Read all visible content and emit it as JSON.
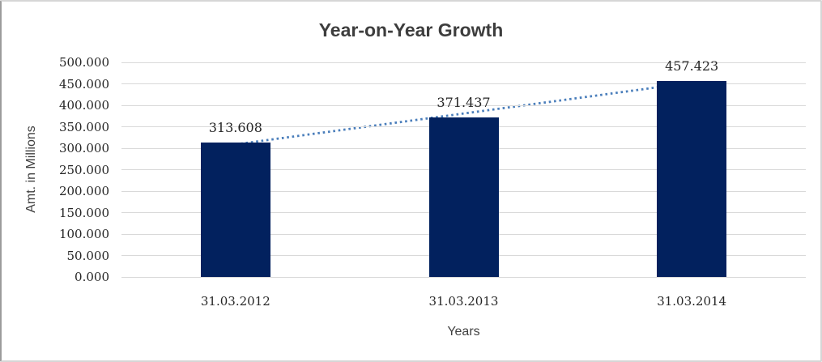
{
  "chart_data": {
    "type": "bar",
    "title": "Year-on-Year Growth",
    "xlabel": "Years",
    "ylabel": "Amt. in Millions",
    "categories": [
      "31.03.2012",
      "31.03.2013",
      "31.03.2014"
    ],
    "values": [
      313.608,
      371.437,
      457.423
    ],
    "value_labels": [
      "313.608",
      "371.437",
      "457.423"
    ],
    "ylim": [
      0,
      500
    ],
    "ytick_step": 50,
    "ytick_labels": [
      "0.000",
      "50.000",
      "100.000",
      "150.000",
      "200.000",
      "250.000",
      "300.000",
      "350.000",
      "400.000",
      "450.000",
      "500.000"
    ],
    "grid": true,
    "legend": "none",
    "trendline": {
      "style": "dotted",
      "fit": "linear"
    },
    "colors": {
      "bar": "#02215e",
      "trendline": "#4a7ebb",
      "gridline": "#d9d9d9",
      "title_text": "#3d3d3d",
      "tick_text": "#262626",
      "axis_title_text": "#3f3f3f",
      "border": "#d6d6d6",
      "border_left": "#9c9c9c"
    }
  }
}
